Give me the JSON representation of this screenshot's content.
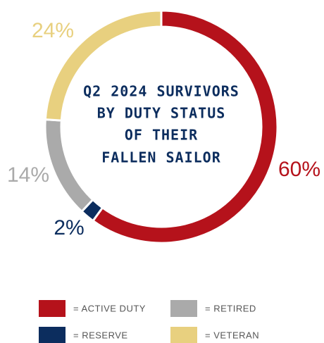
{
  "chart_data": {
    "type": "pie",
    "title": [
      "Q2 2024 SURVIVORS",
      "BY DUTY STATUS",
      "OF THEIR",
      "FALLEN SAILOR"
    ],
    "categories": [
      "= ACTIVE DUTY",
      "= RESERVE",
      "= RETIRED",
      "= VETERAN"
    ],
    "values": [
      60,
      2,
      14,
      24
    ],
    "value_labels": [
      "60%",
      "2%",
      "14%",
      "24%"
    ],
    "colors": [
      "#b5121b",
      "#0c2d5e",
      "#aaaaaa",
      "#e8d07f"
    ],
    "donut": true
  }
}
